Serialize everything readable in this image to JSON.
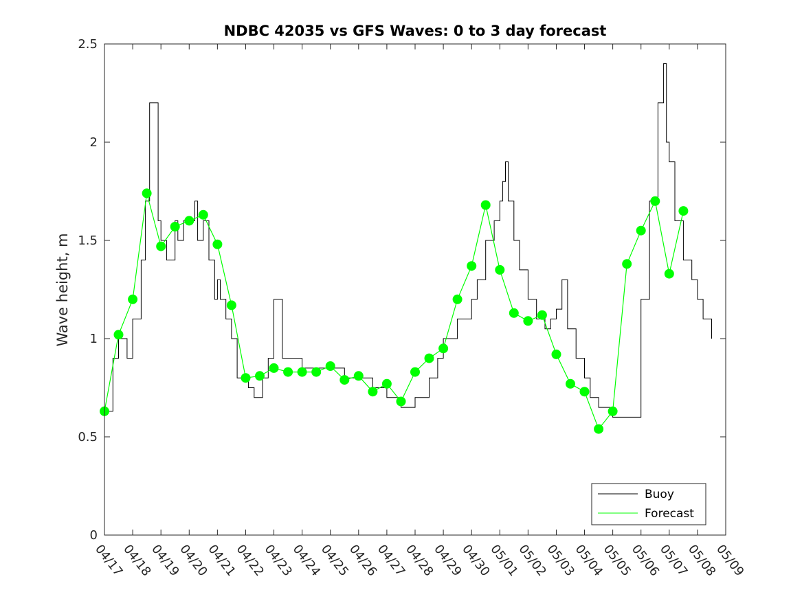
{
  "chart_data": {
    "type": "line",
    "title": "NDBC 42035 vs GFS Waves: 0 to 3 day forecast",
    "xlabel": "",
    "ylabel": "Wave height, m",
    "xlim": [
      "04/17",
      "05/09"
    ],
    "ylim": [
      0,
      2.5
    ],
    "yticks": [
      "0",
      "0.5",
      "1",
      "1.5",
      "2",
      "2.5"
    ],
    "xticks": [
      "04/17",
      "04/18",
      "04/19",
      "04/20",
      "04/21",
      "04/22",
      "04/23",
      "04/24",
      "04/25",
      "04/26",
      "04/27",
      "04/28",
      "04/29",
      "04/30",
      "05/01",
      "05/02",
      "05/03",
      "05/04",
      "05/05",
      "05/06",
      "05/07",
      "05/08",
      "05/09"
    ],
    "grid": false,
    "legend_location": "bottom-right",
    "colors": {
      "buoy": "#000000",
      "forecast": "#00ff00"
    },
    "legend": [
      {
        "label": "Buoy",
        "color": "#000000"
      },
      {
        "label": "Forecast",
        "color": "#00ff00"
      }
    ],
    "series": [
      {
        "name": "Buoy",
        "x_day_offset": [
          0,
          0.3,
          0.5,
          0.8,
          1.0,
          1.3,
          1.45,
          1.6,
          1.9,
          2.0,
          2.2,
          2.5,
          2.6,
          2.8,
          3.0,
          3.2,
          3.3,
          3.5,
          3.7,
          3.9,
          4.0,
          4.1,
          4.3,
          4.5,
          4.7,
          5.0,
          5.1,
          5.3,
          5.6,
          5.8,
          6.0,
          6.3,
          6.6,
          7.0,
          7.2,
          7.5,
          8.0,
          8.5,
          9.0,
          9.5,
          10.0,
          10.5,
          11.0,
          11.5,
          11.8,
          12.0,
          12.5,
          13.0,
          13.2,
          13.5,
          13.8,
          14.0,
          14.1,
          14.2,
          14.3,
          14.5,
          14.7,
          15.0,
          15.3,
          15.6,
          15.8,
          16.0,
          16.2,
          16.4,
          16.7,
          17.0,
          17.2,
          17.5,
          18.0,
          18.5,
          18.8,
          19.0,
          19.3,
          19.6,
          19.8,
          19.9,
          20.0,
          20.2,
          20.5,
          20.8,
          21.0,
          21.2,
          21.5
        ],
        "values": [
          0.63,
          0.9,
          1.0,
          0.9,
          1.1,
          1.4,
          1.7,
          2.2,
          1.6,
          1.5,
          1.4,
          1.6,
          1.5,
          1.6,
          1.6,
          1.7,
          1.5,
          1.6,
          1.4,
          1.2,
          1.3,
          1.2,
          1.1,
          1.0,
          0.8,
          0.8,
          0.75,
          0.7,
          0.8,
          0.9,
          1.2,
          0.9,
          0.9,
          0.85,
          0.85,
          0.85,
          0.85,
          0.8,
          0.8,
          0.75,
          0.7,
          0.65,
          0.7,
          0.8,
          0.9,
          1.0,
          1.1,
          1.2,
          1.3,
          1.5,
          1.6,
          1.7,
          1.8,
          1.9,
          1.7,
          1.5,
          1.35,
          1.2,
          1.1,
          1.05,
          1.1,
          1.15,
          1.3,
          1.05,
          0.9,
          0.8,
          0.7,
          0.65,
          0.6,
          0.6,
          0.6,
          1.2,
          1.7,
          2.2,
          2.4,
          2.0,
          1.9,
          1.6,
          1.4,
          1.3,
          1.2,
          1.1,
          1.0
        ]
      },
      {
        "name": "Forecast",
        "x_day_offset": [
          0,
          0.5,
          1.0,
          1.5,
          2.0,
          2.5,
          3.0,
          3.5,
          4.0,
          4.5,
          5.0,
          5.5,
          6.0,
          6.5,
          7.0,
          7.5,
          8.0,
          8.5,
          9.0,
          9.5,
          10.0,
          10.5,
          11.0,
          11.5,
          12.0,
          12.5,
          13.0,
          13.5,
          14.0,
          14.5,
          15.0,
          15.5,
          16.0,
          16.5,
          17.0,
          17.5,
          18.0,
          18.5,
          19.0,
          19.5,
          20.0,
          20.5
        ],
        "values": [
          0.63,
          1.02,
          1.2,
          1.74,
          1.47,
          1.57,
          1.6,
          1.63,
          1.48,
          1.17,
          0.8,
          0.81,
          0.85,
          0.83,
          0.83,
          0.83,
          0.86,
          0.79,
          0.81,
          0.73,
          0.77,
          0.68,
          0.83,
          0.9,
          0.95,
          1.2,
          1.37,
          1.68,
          1.35,
          1.13,
          1.09,
          1.12,
          0.92,
          0.77,
          0.73,
          0.54,
          0.63,
          1.38,
          1.55,
          1.7,
          1.33,
          1.65
        ]
      }
    ]
  }
}
